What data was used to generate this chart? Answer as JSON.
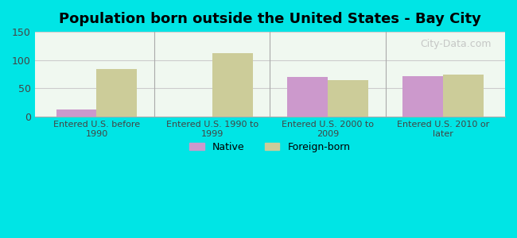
{
  "title": "Population born outside the United States - Bay City",
  "categories": [
    "Entered U.S. before\n1990",
    "Entered U.S. 1990 to\n1999",
    "Entered U.S. 2000 to\n2009",
    "Entered U.S. 2010 or\nlater"
  ],
  "native_values": [
    13,
    0,
    70,
    72
  ],
  "foreign_values": [
    84,
    113,
    65,
    75
  ],
  "native_color": "#cc99cc",
  "foreign_color": "#cccc99",
  "background_outer": "#00e5e5",
  "background_inner": "#f0f8f0",
  "ylim": [
    0,
    150
  ],
  "yticks": [
    0,
    50,
    100,
    150
  ],
  "bar_width": 0.35,
  "legend_native": "Native",
  "legend_foreign": "Foreign-born",
  "watermark": "City-Data.com"
}
